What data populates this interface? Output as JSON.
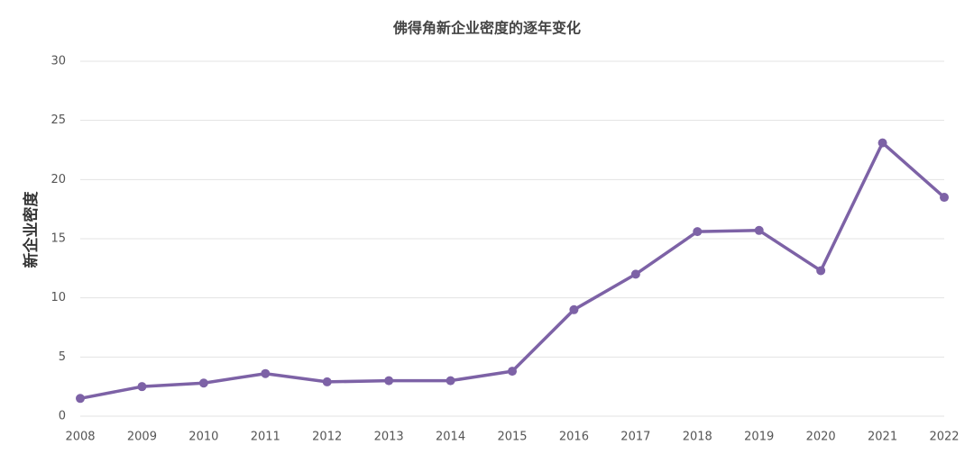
{
  "chart_data": {
    "type": "line",
    "title": "佛得角新企业密度的逐年变化",
    "y_label": "新企业密度",
    "x": [
      2008,
      2009,
      2010,
      2011,
      2012,
      2013,
      2014,
      2015,
      2016,
      2017,
      2018,
      2019,
      2020,
      2021,
      2022
    ],
    "xlim": [
      2008,
      2022
    ],
    "xticks": [
      2008,
      2009,
      2010,
      2011,
      2012,
      2013,
      2014,
      2015,
      2016,
      2017,
      2018,
      2019,
      2020,
      2021,
      2022
    ],
    "series": [
      {
        "name": "新企业密度",
        "color": "#7d62a6",
        "values": [
          1.5,
          2.5,
          2.8,
          3.6,
          2.9,
          3.0,
          3.0,
          3.8,
          9.0,
          12.0,
          15.6,
          15.7,
          12.3,
          23.1,
          18.5
        ]
      }
    ],
    "ylim": [
      0,
      30
    ],
    "yticks": [
      0,
      5,
      10,
      15,
      20,
      25,
      30
    ],
    "grid": true
  }
}
